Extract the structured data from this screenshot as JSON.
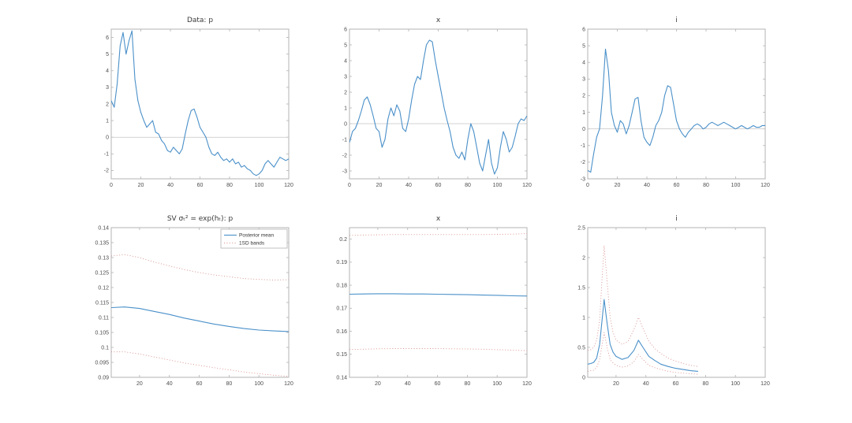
{
  "figure": {
    "background": "#ffffff"
  },
  "colors": {
    "line": "#4a90c9",
    "band": "#d98c8c",
    "axis": "#b3b3b3",
    "zero_line": "#c4c4c4",
    "tick_text": "#4d4d4d",
    "title_text": "#383838"
  },
  "chart_data": [
    {
      "type": "line",
      "title": "Data:  p",
      "xlabel": "",
      "ylabel": "",
      "xlim": [
        0,
        120
      ],
      "ylim": [
        -2.5,
        6.5
      ],
      "xticks": [
        0,
        20,
        40,
        60,
        80,
        100,
        120
      ],
      "yticks": [
        "-2",
        "-1",
        "0",
        "1",
        "2",
        "3",
        "4",
        "5",
        "6"
      ],
      "zero_line": 0,
      "grid": false,
      "series": [
        {
          "name": "p",
          "color": "line",
          "style": "solid",
          "x0": 0,
          "dx": 2,
          "y": [
            2.2,
            1.8,
            3.2,
            5.5,
            6.3,
            5.0,
            5.8,
            6.4,
            3.5,
            2.2,
            1.5,
            1.0,
            0.6,
            0.8,
            1.0,
            0.3,
            0.2,
            -0.2,
            -0.4,
            -0.8,
            -0.9,
            -0.6,
            -0.8,
            -1.0,
            -0.7,
            0.2,
            1.0,
            1.6,
            1.7,
            1.2,
            0.6,
            0.3,
            0.0,
            -0.6,
            -1.0,
            -1.1,
            -0.9,
            -1.2,
            -1.4,
            -1.3,
            -1.5,
            -1.3,
            -1.6,
            -1.5,
            -1.8,
            -1.7,
            -1.9,
            -2.0,
            -2.2,
            -2.3,
            -2.2,
            -2.0,
            -1.6,
            -1.4,
            -1.6,
            -1.8,
            -1.5,
            -1.2,
            -1.3,
            -1.4,
            -1.3
          ]
        }
      ]
    },
    {
      "type": "line",
      "title": "x",
      "xlabel": "",
      "ylabel": "",
      "xlim": [
        0,
        120
      ],
      "ylim": [
        -3.5,
        6
      ],
      "xticks": [
        0,
        20,
        40,
        60,
        80,
        100,
        120
      ],
      "yticks": [
        "-3",
        "-2",
        "-1",
        "0",
        "1",
        "2",
        "3",
        "4",
        "5",
        "6"
      ],
      "zero_line": 0,
      "grid": false,
      "series": [
        {
          "name": "x",
          "color": "line",
          "style": "solid",
          "x0": 0,
          "dx": 2,
          "y": [
            -1.2,
            -0.5,
            -0.3,
            0.2,
            0.8,
            1.5,
            1.7,
            1.2,
            0.5,
            -0.3,
            -0.5,
            -1.5,
            -1.0,
            0.3,
            1.0,
            0.5,
            1.2,
            0.8,
            -0.3,
            -0.5,
            0.3,
            1.5,
            2.5,
            3.0,
            2.8,
            4.0,
            5.0,
            5.3,
            5.2,
            4.0,
            3.0,
            2.0,
            1.0,
            0.2,
            -0.5,
            -1.5,
            -2.0,
            -2.2,
            -1.8,
            -2.3,
            -1.0,
            0.0,
            -0.5,
            -1.5,
            -2.5,
            -3.0,
            -2.0,
            -1.0,
            -2.5,
            -3.2,
            -2.8,
            -1.5,
            -0.5,
            -1.0,
            -1.8,
            -1.5,
            -0.8,
            0.0,
            0.3,
            0.2,
            0.5
          ]
        }
      ]
    },
    {
      "type": "line",
      "title": "i",
      "xlabel": "",
      "ylabel": "",
      "xlim": [
        0,
        120
      ],
      "ylim": [
        -3,
        6
      ],
      "xticks": [
        0,
        20,
        40,
        60,
        80,
        100,
        120
      ],
      "yticks": [
        "-3",
        "-2",
        "-1",
        "0",
        "1",
        "2",
        "3",
        "4",
        "5",
        "6"
      ],
      "zero_line": 0,
      "grid": false,
      "series": [
        {
          "name": "i",
          "color": "line",
          "style": "solid",
          "x0": 0,
          "dx": 2,
          "y": [
            -2.5,
            -2.6,
            -1.5,
            -0.5,
            0.0,
            2.0,
            4.8,
            3.5,
            1.0,
            0.2,
            -0.2,
            0.5,
            0.3,
            -0.3,
            0.2,
            1.0,
            1.8,
            1.9,
            0.5,
            -0.5,
            -0.8,
            -1.0,
            -0.5,
            0.2,
            0.5,
            1.0,
            2.0,
            2.6,
            2.5,
            1.5,
            0.5,
            0.0,
            -0.3,
            -0.5,
            -0.2,
            0.0,
            0.2,
            0.3,
            0.2,
            0.0,
            0.1,
            0.3,
            0.4,
            0.3,
            0.2,
            0.3,
            0.4,
            0.3,
            0.2,
            0.1,
            0.0,
            0.1,
            0.2,
            0.1,
            0.0,
            0.1,
            0.2,
            0.1,
            0.1,
            0.2,
            0.2
          ]
        }
      ]
    },
    {
      "type": "line",
      "title": "SV σₜ² = exp(hₜ):  p",
      "xlabel": "",
      "ylabel": "",
      "xlim": [
        1,
        120
      ],
      "ylim": [
        0.09,
        0.14
      ],
      "xticks": [
        20,
        40,
        60,
        80,
        100,
        120
      ],
      "yticks": [
        "0.09",
        "0.095",
        "0.1",
        "0.105",
        "0.11",
        "0.115",
        "0.12",
        "0.125",
        "0.13",
        "0.135",
        "0.14"
      ],
      "grid": false,
      "legend": {
        "position": "top-right",
        "entries": [
          {
            "label": "Posterior mean",
            "color": "line",
            "style": "solid"
          },
          {
            "label": "1SD bands",
            "color": "band",
            "style": "dotted"
          }
        ]
      },
      "series": [
        {
          "name": "1SD upper",
          "color": "band",
          "style": "dotted",
          "x": [
            1,
            10,
            20,
            30,
            40,
            50,
            60,
            70,
            80,
            90,
            100,
            110,
            120
          ],
          "y": [
            0.1305,
            0.131,
            0.13,
            0.1285,
            0.1272,
            0.126,
            0.125,
            0.1242,
            0.1236,
            0.123,
            0.1227,
            0.1225,
            0.1226
          ]
        },
        {
          "name": "Posterior mean",
          "color": "line",
          "style": "solid",
          "x": [
            1,
            10,
            20,
            30,
            40,
            50,
            60,
            70,
            80,
            90,
            100,
            110,
            120
          ],
          "y": [
            0.1133,
            0.1135,
            0.113,
            0.112,
            0.111,
            0.1098,
            0.1088,
            0.1078,
            0.107,
            0.1063,
            0.1058,
            0.1055,
            0.1053
          ]
        },
        {
          "name": "1SD lower",
          "color": "band",
          "style": "dotted",
          "x": [
            1,
            10,
            20,
            30,
            40,
            50,
            60,
            70,
            80,
            90,
            100,
            110,
            120
          ],
          "y": [
            0.0985,
            0.0985,
            0.0978,
            0.0968,
            0.0958,
            0.0948,
            0.094,
            0.0932,
            0.0925,
            0.0918,
            0.0912,
            0.0907,
            0.0903
          ]
        }
      ]
    },
    {
      "type": "line",
      "title": "x",
      "xlabel": "",
      "ylabel": "",
      "xlim": [
        1,
        120
      ],
      "ylim": [
        0.14,
        0.205
      ],
      "xticks": [
        20,
        40,
        60,
        80,
        100,
        120
      ],
      "yticks": [
        "0.14",
        "0.15",
        "0.16",
        "0.17",
        "0.18",
        "0.19",
        "0.2"
      ],
      "grid": false,
      "series": [
        {
          "name": "1SD upper",
          "color": "band",
          "style": "dotted",
          "x": [
            1,
            10,
            20,
            30,
            40,
            50,
            60,
            70,
            80,
            90,
            100,
            110,
            120
          ],
          "y": [
            0.2016,
            0.2018,
            0.2019,
            0.202,
            0.202,
            0.202,
            0.202,
            0.202,
            0.202,
            0.202,
            0.2021,
            0.2022,
            0.2024
          ]
        },
        {
          "name": "Posterior mean",
          "color": "line",
          "style": "solid",
          "x": [
            1,
            10,
            20,
            30,
            40,
            50,
            60,
            70,
            80,
            90,
            100,
            110,
            120
          ],
          "y": [
            0.1761,
            0.1762,
            0.1763,
            0.1763,
            0.1762,
            0.1762,
            0.1761,
            0.176,
            0.1759,
            0.1757,
            0.1756,
            0.1754,
            0.1753
          ]
        },
        {
          "name": "1SD lower",
          "color": "band",
          "style": "dotted",
          "x": [
            1,
            10,
            20,
            30,
            40,
            50,
            60,
            70,
            80,
            90,
            100,
            110,
            120
          ],
          "y": [
            0.1521,
            0.1522,
            0.1524,
            0.1525,
            0.1525,
            0.1525,
            0.1525,
            0.1524,
            0.1523,
            0.1522,
            0.152,
            0.1518,
            0.1516
          ]
        }
      ]
    },
    {
      "type": "line",
      "title": "i",
      "xlabel": "",
      "ylabel": "",
      "xlim": [
        1,
        120
      ],
      "ylim": [
        0,
        2.5
      ],
      "xticks": [
        20,
        40,
        60,
        80,
        100,
        120
      ],
      "yticks": [
        "0",
        "0.5",
        "1",
        "1.5",
        "2",
        "2.5"
      ],
      "grid": false,
      "series": [
        {
          "name": "1SD upper",
          "color": "band",
          "style": "dotted",
          "x": [
            1,
            3,
            5,
            7,
            9,
            11,
            12,
            14,
            16,
            18,
            20,
            24,
            28,
            32,
            35,
            38,
            42,
            46,
            50,
            55,
            60,
            65,
            70,
            75
          ],
          "y": [
            0.45,
            0.46,
            0.5,
            0.62,
            0.95,
            1.8,
            2.2,
            1.6,
            1.0,
            0.75,
            0.62,
            0.55,
            0.6,
            0.8,
            1.0,
            0.82,
            0.6,
            0.48,
            0.4,
            0.32,
            0.27,
            0.23,
            0.2,
            0.18
          ]
        },
        {
          "name": "Posterior mean",
          "color": "line",
          "style": "solid",
          "x": [
            1,
            3,
            5,
            7,
            9,
            11,
            12,
            14,
            16,
            18,
            20,
            24,
            28,
            32,
            35,
            38,
            42,
            46,
            50,
            55,
            60,
            65,
            70,
            75
          ],
          "y": [
            0.22,
            0.23,
            0.25,
            0.32,
            0.55,
            1.05,
            1.3,
            0.9,
            0.55,
            0.42,
            0.35,
            0.3,
            0.33,
            0.45,
            0.62,
            0.5,
            0.35,
            0.28,
            0.22,
            0.18,
            0.15,
            0.13,
            0.11,
            0.1
          ]
        },
        {
          "name": "1SD lower",
          "color": "band",
          "style": "dotted",
          "x": [
            1,
            3,
            5,
            7,
            9,
            11,
            12,
            14,
            16,
            18,
            20,
            24,
            28,
            32,
            35,
            38,
            42,
            46,
            50,
            55,
            60,
            65,
            70,
            75
          ],
          "y": [
            0.1,
            0.11,
            0.12,
            0.16,
            0.3,
            0.6,
            0.75,
            0.5,
            0.3,
            0.24,
            0.2,
            0.17,
            0.19,
            0.26,
            0.38,
            0.3,
            0.2,
            0.16,
            0.13,
            0.1,
            0.08,
            0.07,
            0.06,
            0.05
          ]
        }
      ]
    }
  ]
}
